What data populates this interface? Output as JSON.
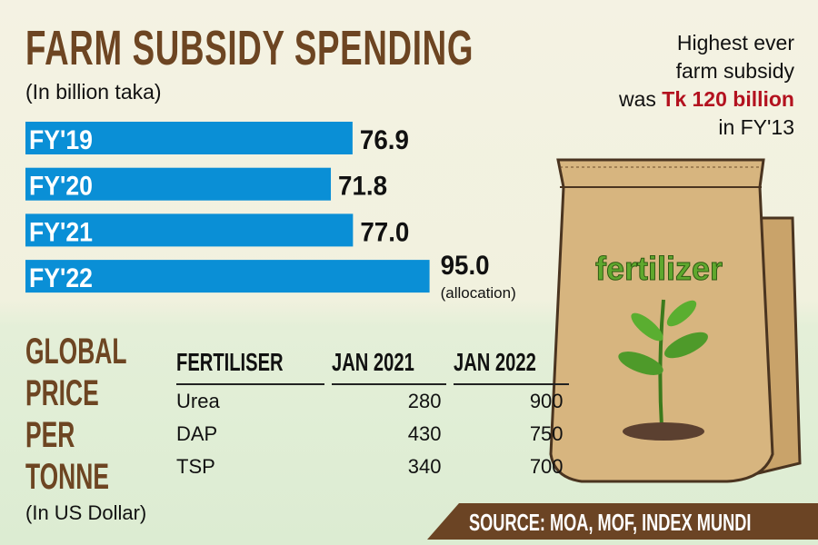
{
  "chart_data": {
    "type": "bar",
    "orientation": "horizontal",
    "title": "FARM SUBSIDY SPENDING",
    "subtitle": "(In billion taka)",
    "categories": [
      "FY'19",
      "FY'20",
      "FY'21",
      "FY'22"
    ],
    "values": [
      76.9,
      71.8,
      77.0,
      95.0
    ],
    "value_labels": [
      "76.9",
      "71.8",
      "77.0",
      "95.0"
    ],
    "annotations": {
      "FY'22": "(allocation)"
    },
    "bar_color": "#0a8fd6",
    "grid": false
  },
  "note": {
    "line1": "Highest ever",
    "line2": "farm subsidy",
    "line3_pre": "was ",
    "line3_hl": "Tk 120 billion",
    "line4": "in FY'13",
    "highlight_color": "#b3121f"
  },
  "price": {
    "heading": [
      "GLOBAL",
      "PRICE",
      "PER",
      "TONNE"
    ],
    "unit": "(In US Dollar)",
    "columns": [
      "FERTILISER",
      "JAN 2021",
      "JAN 2022"
    ],
    "rows": [
      [
        "Urea",
        "280",
        "900"
      ],
      [
        "DAP",
        "430",
        "750"
      ],
      [
        "TSP",
        "340",
        "700"
      ]
    ]
  },
  "bag_label": "fertilizer",
  "source": "SOURCE: MOA, MOF, INDEX MUNDI",
  "colors": {
    "title": "#6d4522",
    "bar": "#0a8fd6",
    "source_bg": "#6b4424"
  }
}
